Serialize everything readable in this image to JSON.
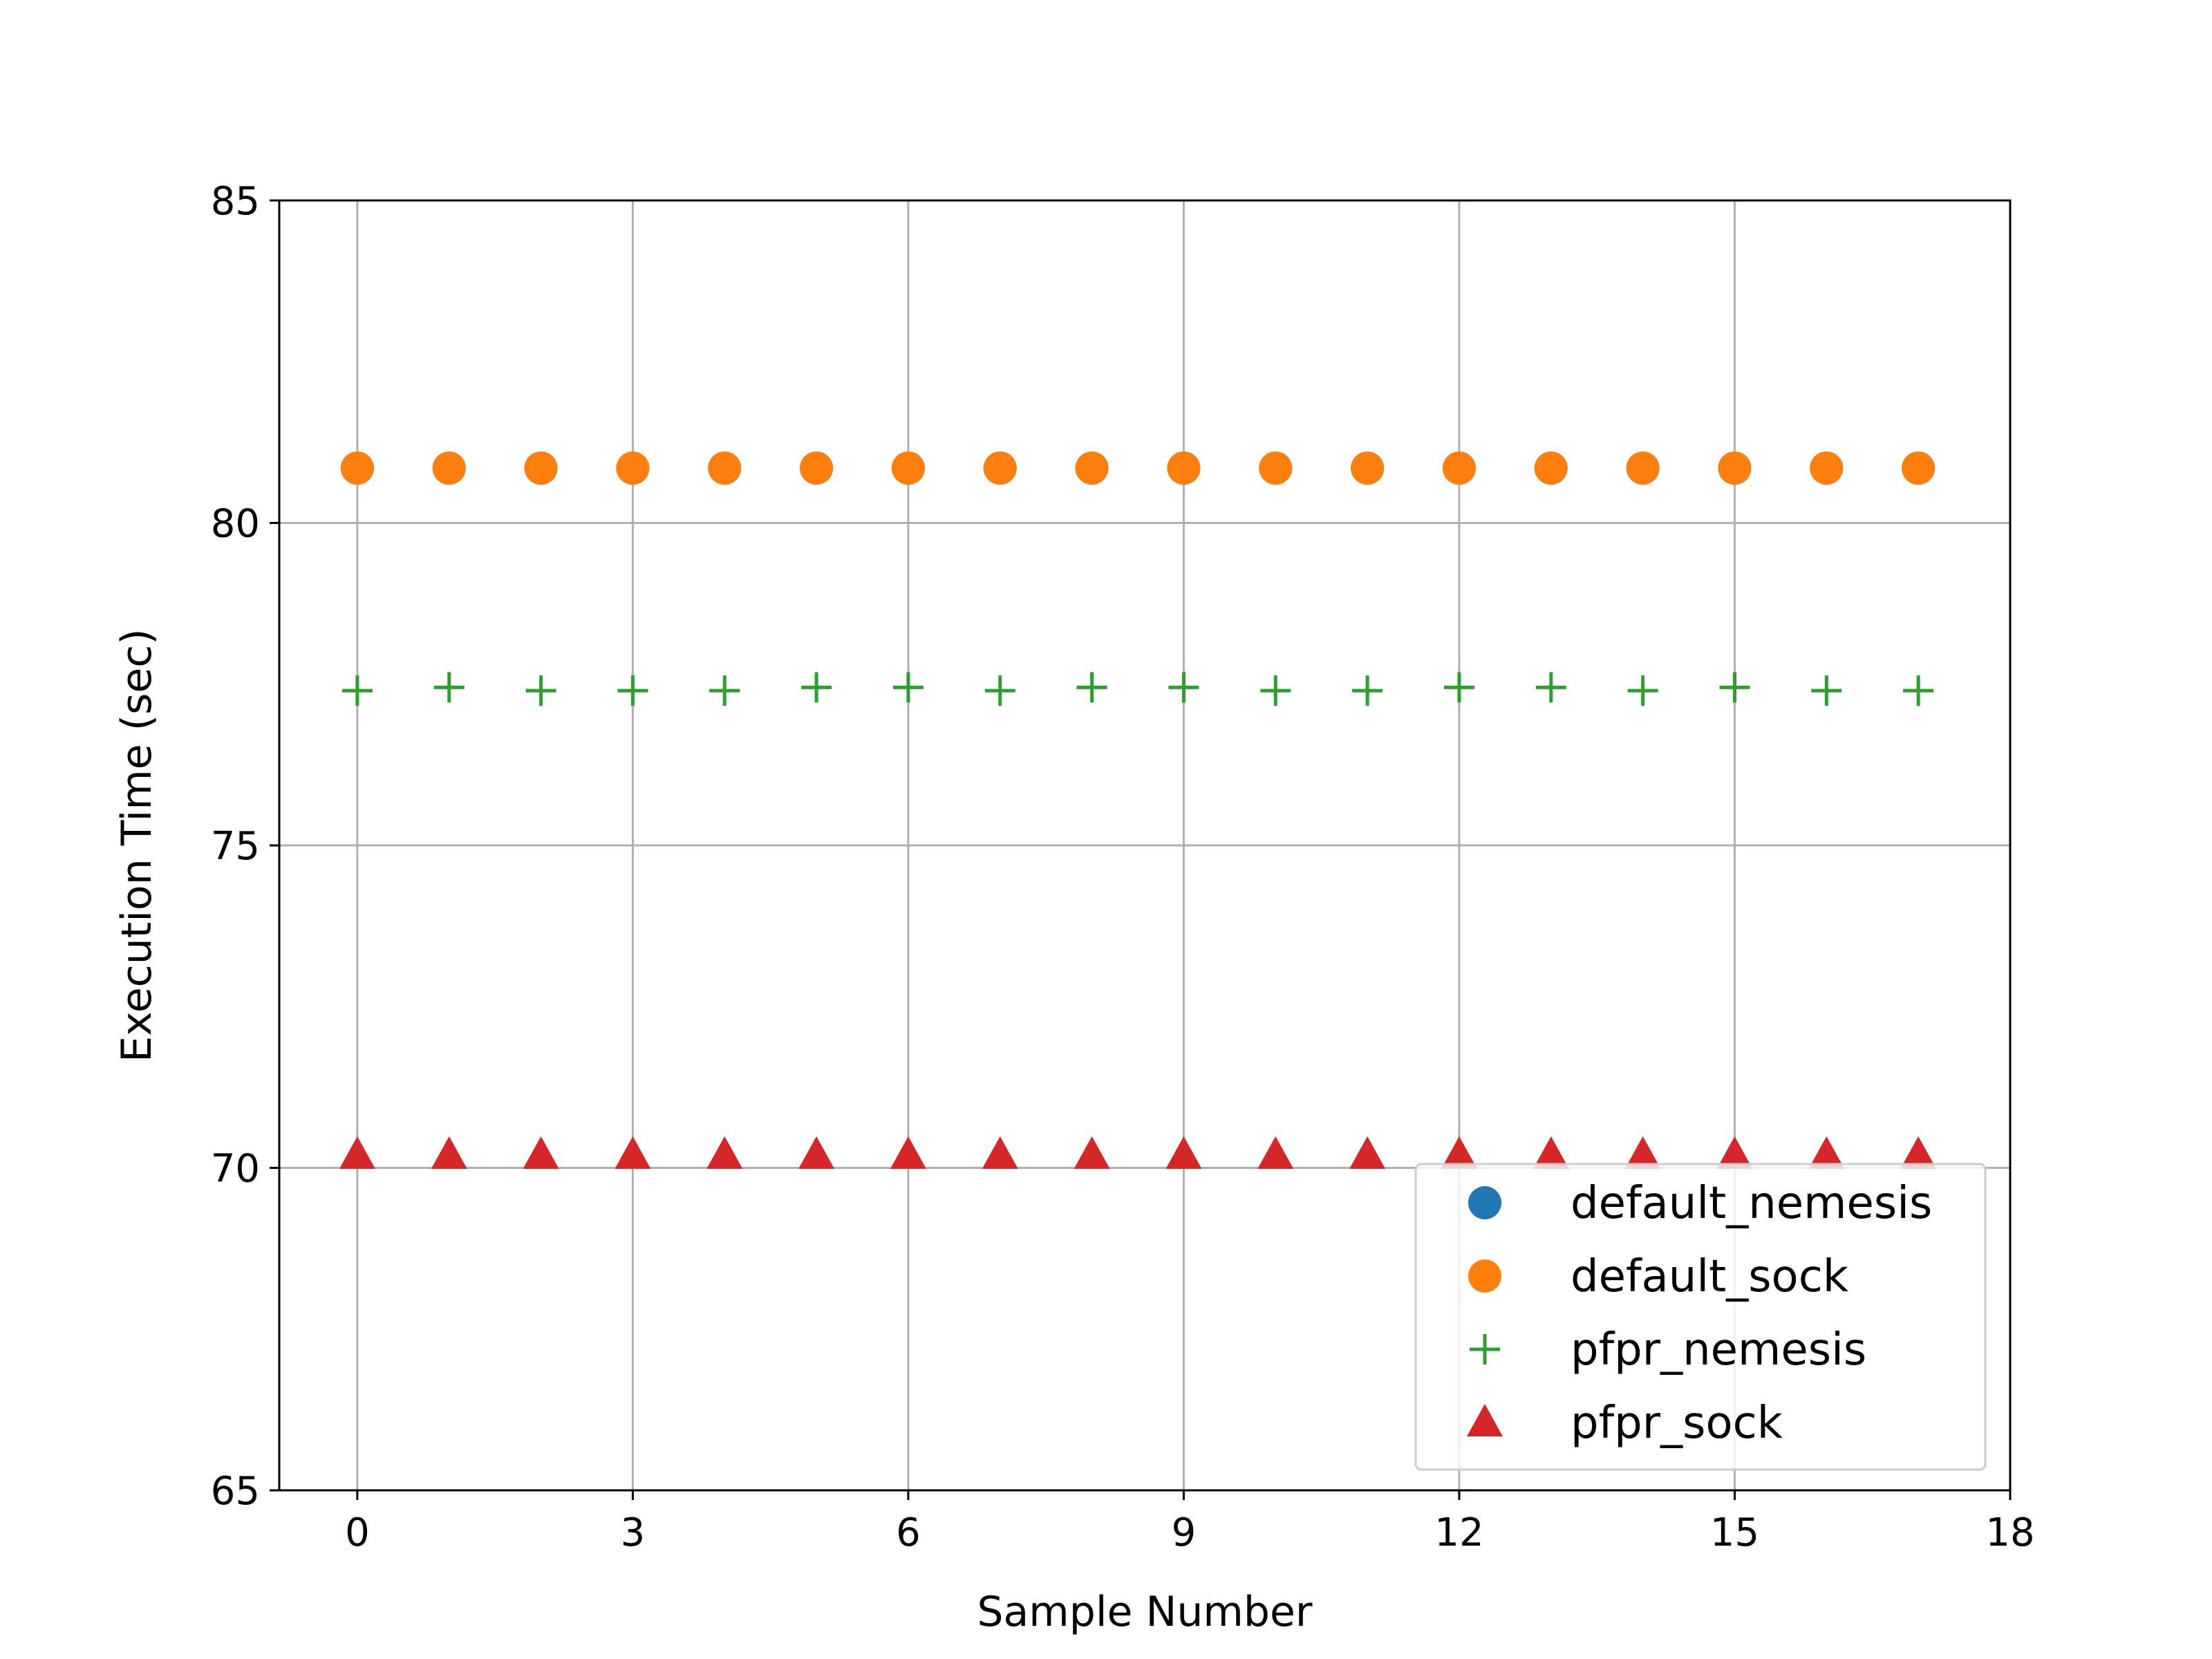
{
  "chart_data": {
    "type": "scatter",
    "title": "",
    "xlabel": "Sample Number",
    "ylabel": "Execution Time (sec)",
    "xlim": [
      -0.85,
      18
    ],
    "ylim": [
      65,
      85
    ],
    "xticks": [
      0,
      3,
      6,
      9,
      12,
      15,
      18
    ],
    "yticks": [
      65,
      70,
      75,
      80,
      85
    ],
    "grid": true,
    "legend_position": "lower-right",
    "x": [
      0,
      1,
      2,
      3,
      4,
      5,
      6,
      7,
      8,
      9,
      10,
      11,
      12,
      13,
      14,
      15,
      16,
      17
    ],
    "series": [
      {
        "name": "default_nemesis",
        "marker": "circle",
        "color": "#1f77b4",
        "values": [
          80.85,
          80.85,
          80.85,
          80.85,
          80.85,
          80.85,
          80.85,
          80.85,
          80.85,
          80.85,
          80.85,
          80.85,
          80.85,
          80.85,
          80.85,
          80.85,
          80.85,
          80.85
        ]
      },
      {
        "name": "default_sock",
        "marker": "circle",
        "color": "#ff7f0e",
        "values": [
          80.85,
          80.85,
          80.85,
          80.85,
          80.85,
          80.85,
          80.85,
          80.85,
          80.85,
          80.85,
          80.85,
          80.85,
          80.85,
          80.85,
          80.85,
          80.85,
          80.85,
          80.85
        ]
      },
      {
        "name": "pfpr_nemesis",
        "marker": "plus",
        "color": "#2ca02c",
        "values": [
          77.4,
          77.45,
          77.4,
          77.4,
          77.4,
          77.45,
          77.45,
          77.4,
          77.45,
          77.45,
          77.4,
          77.4,
          77.45,
          77.45,
          77.4,
          77.45,
          77.4,
          77.4
        ]
      },
      {
        "name": "pfpr_sock",
        "marker": "triangle",
        "color": "#d62728",
        "values": [
          70.2,
          70.2,
          70.2,
          70.2,
          70.2,
          70.2,
          70.2,
          70.2,
          70.2,
          70.2,
          70.2,
          70.2,
          70.2,
          70.2,
          70.2,
          70.2,
          70.2,
          70.2
        ]
      }
    ]
  }
}
